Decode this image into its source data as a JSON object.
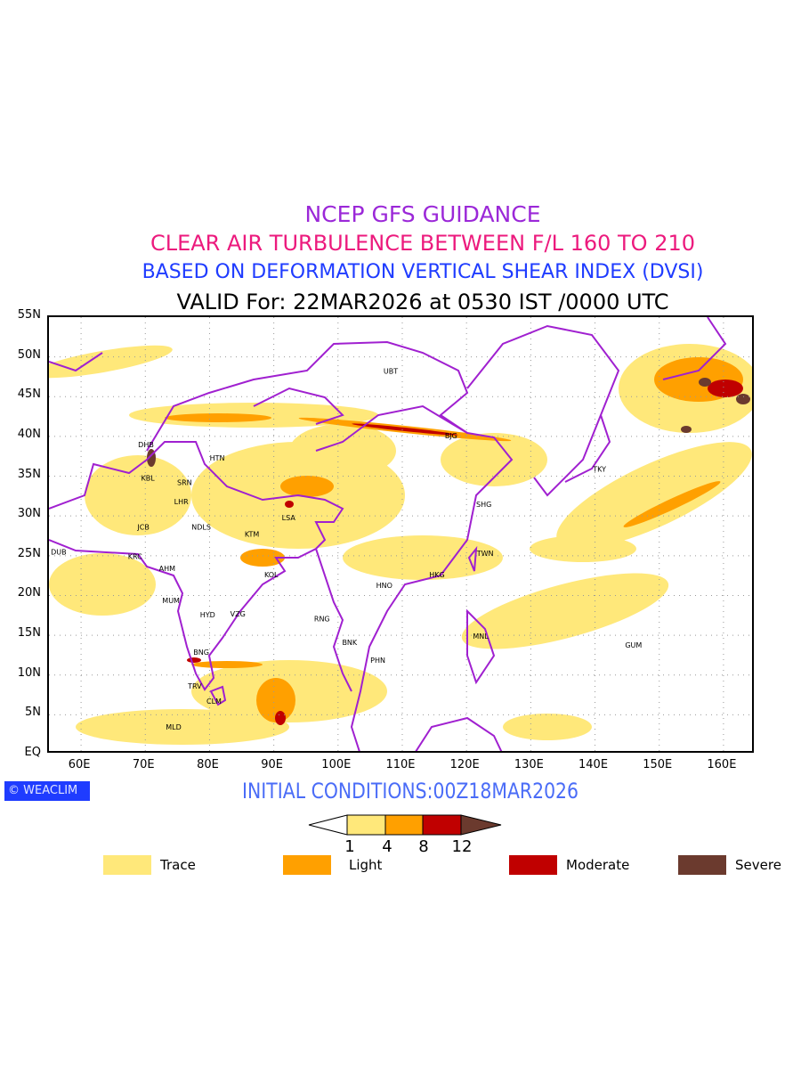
{
  "titles": {
    "line1": "NCEP GFS GUIDANCE",
    "line2": "CLEAR AIR TURBULENCE BETWEEN F/L 160 TO 210",
    "line3": "BASED ON DEFORMATION VERTICAL SHEAR INDEX (DVSI)",
    "line4": "VALID For: 22MAR2026 at 0530 IST /0000 UTC"
  },
  "map": {
    "lon_range": [
      55,
      165
    ],
    "lat_range": [
      0,
      55
    ],
    "lat_labels": [
      "55N",
      "50N",
      "45N",
      "40N",
      "35N",
      "30N",
      "25N",
      "20N",
      "15N",
      "10N",
      "5N",
      "EQ"
    ],
    "lon_labels": [
      "60E",
      "70E",
      "80E",
      "90E",
      "100E",
      "110E",
      "120E",
      "130E",
      "140E",
      "150E",
      "160E"
    ],
    "cities": [
      {
        "code": "UBT",
        "lon": 108.2,
        "lat": 48.2
      },
      {
        "code": "BJG",
        "lon": 117.6,
        "lat": 40.1
      },
      {
        "code": "DHB",
        "lon": 70.1,
        "lat": 39.0
      },
      {
        "code": "HTN",
        "lon": 81.2,
        "lat": 37.3
      },
      {
        "code": "KBL",
        "lon": 70.4,
        "lat": 34.8
      },
      {
        "code": "SRN",
        "lon": 76.1,
        "lat": 34.2
      },
      {
        "code": "TKY",
        "lon": 140.7,
        "lat": 35.9
      },
      {
        "code": "LHR",
        "lon": 75.6,
        "lat": 31.8
      },
      {
        "code": "SHG",
        "lon": 122.7,
        "lat": 31.5
      },
      {
        "code": "LSA",
        "lon": 92.3,
        "lat": 29.8
      },
      {
        "code": "JCB",
        "lon": 69.7,
        "lat": 28.6
      },
      {
        "code": "NDLS",
        "lon": 78.7,
        "lat": 28.6
      },
      {
        "code": "KTM",
        "lon": 86.6,
        "lat": 27.7
      },
      {
        "code": "DUB",
        "lon": 56.5,
        "lat": 25.5
      },
      {
        "code": "KRC",
        "lon": 68.4,
        "lat": 24.9
      },
      {
        "code": "TWN",
        "lon": 122.9,
        "lat": 25.3
      },
      {
        "code": "AHM",
        "lon": 73.4,
        "lat": 23.4
      },
      {
        "code": "KOL",
        "lon": 89.6,
        "lat": 22.6
      },
      {
        "code": "HKG",
        "lon": 115.4,
        "lat": 22.6
      },
      {
        "code": "HNO",
        "lon": 107.2,
        "lat": 21.3
      },
      {
        "code": "MUM",
        "lon": 74.0,
        "lat": 19.4
      },
      {
        "code": "HYD",
        "lon": 79.7,
        "lat": 17.6
      },
      {
        "code": "VZG",
        "lon": 84.4,
        "lat": 17.7
      },
      {
        "code": "RNG",
        "lon": 97.5,
        "lat": 17.1
      },
      {
        "code": "MNL",
        "lon": 122.2,
        "lat": 14.9
      },
      {
        "code": "GUM",
        "lon": 146.0,
        "lat": 13.8
      },
      {
        "code": "BNK",
        "lon": 101.8,
        "lat": 14.1
      },
      {
        "code": "BNG",
        "lon": 78.7,
        "lat": 12.9
      },
      {
        "code": "PHN",
        "lon": 106.2,
        "lat": 11.9
      },
      {
        "code": "TRV",
        "lon": 77.7,
        "lat": 8.6
      },
      {
        "code": "CLM",
        "lon": 80.7,
        "lat": 6.7
      },
      {
        "code": "MLD",
        "lon": 74.4,
        "lat": 3.5
      }
    ]
  },
  "footer": {
    "logo": "WEACLIM",
    "initial_conditions": "INITIAL CONDITIONS:00Z18MAR2026"
  },
  "colorbar": {
    "thresholds": [
      "1",
      "4",
      "8",
      "12"
    ],
    "colors": [
      "#ffe87a",
      "#ffa000",
      "#c00000",
      "#6b3a2e"
    ]
  },
  "legend": [
    {
      "label": "Trace",
      "color": "#ffe87a"
    },
    {
      "label": "Light",
      "color": "#ffa000"
    },
    {
      "label": "Moderate",
      "color": "#c00000"
    },
    {
      "label": "Severe",
      "color": "#6b3a2e"
    }
  ]
}
